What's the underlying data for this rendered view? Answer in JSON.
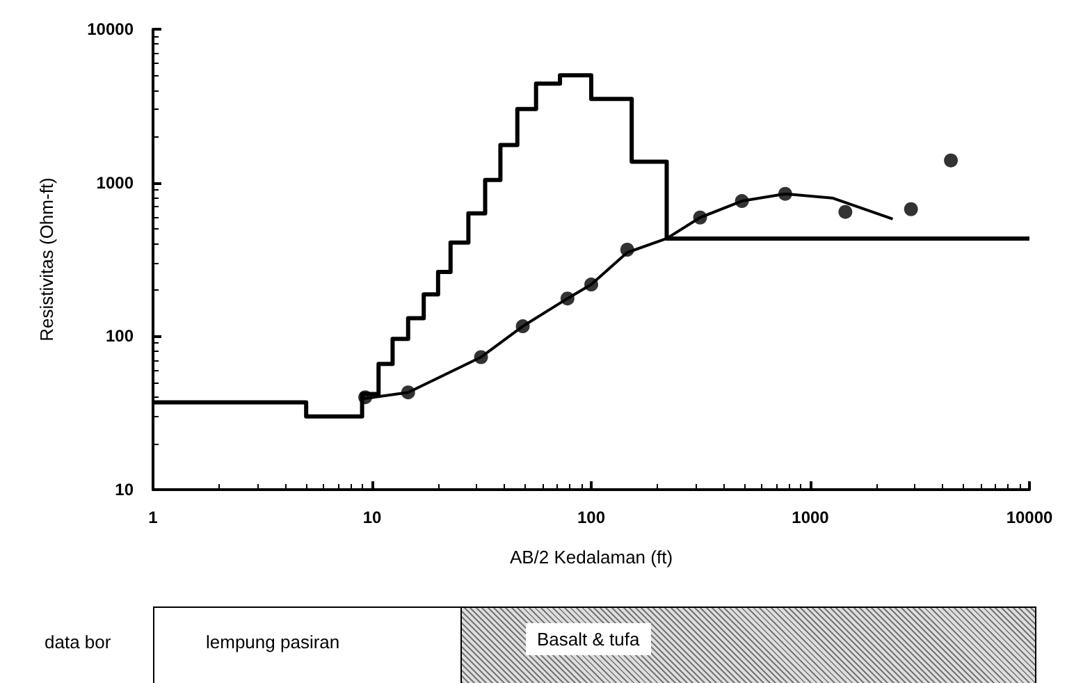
{
  "chart_data": {
    "type": "line",
    "xlabel": "AB/2 Kedalaman (ft)",
    "ylabel": "Resistivitas (Ohm-ft)",
    "log": "xy",
    "xlim": [
      1,
      10000
    ],
    "ylim": [
      10,
      10000
    ],
    "xticks": [
      1,
      10,
      100,
      1000,
      10000
    ],
    "yticks": [
      10,
      100,
      1000,
      10000
    ],
    "annotations": [
      "data bor",
      "lempung pasiran",
      "Basalt & tufa"
    ],
    "series": [
      {
        "type": "step",
        "color": "#000000",
        "x": [
          1,
          5,
          9,
          10.7,
          12.4,
          14.6,
          17.2,
          20,
          22.8,
          27.5,
          32.8,
          38.5,
          46,
          56,
          72,
          100,
          153,
          221,
          10000
        ],
        "values": [
          37,
          30,
          42,
          66,
          96,
          131,
          187,
          262,
          407,
          631,
          1042,
          1760,
          3020,
          4420,
          5010,
          3510,
          1370,
          433,
          433
        ]
      },
      {
        "color": "#000000",
        "x": [
          9,
          14.6,
          31.4,
          48.7,
          77.9,
          100,
          146,
          221,
          314,
          487,
          768,
          1260,
          2376
        ],
        "values": [
          39,
          43,
          73,
          116,
          176,
          217,
          351,
          433,
          593,
          759,
          846,
          795,
          580
        ]
      },
      {
        "type": "scatter",
        "color": "#000000",
        "marker": "circle",
        "x": [
          9.3,
          14.6,
          31.4,
          48.7,
          77.9,
          100,
          146,
          314,
          487,
          768,
          1445,
          2880,
          4380
        ],
        "values": [
          40,
          43,
          73,
          116,
          176,
          217,
          366,
          593,
          759,
          846,
          645,
          672,
          1397
        ]
      }
    ]
  }
}
